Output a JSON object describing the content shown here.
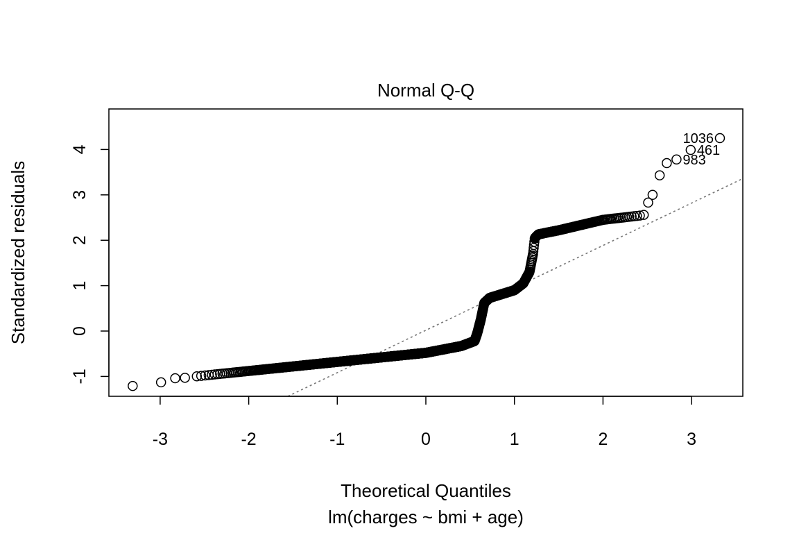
{
  "chart_data": {
    "type": "scatter",
    "title": "Normal Q-Q",
    "xlabel": "Theoretical Quantiles",
    "ylabel": "Standardized residuals",
    "subtitle": "lm(charges ~ bmi + age)",
    "xlim": [
      -3.6,
      3.6
    ],
    "ylim": [
      -1.45,
      4.9
    ],
    "xticks": [
      -3,
      -2,
      -1,
      0,
      1,
      2,
      3
    ],
    "yticks": [
      -1,
      0,
      1,
      2,
      3,
      4
    ],
    "grid": false,
    "marker": "open-circle",
    "reference_line": {
      "intercept": 0.017,
      "slope": 0.934,
      "style": "dotted",
      "color": "#777777"
    },
    "curve_knots": [
      [
        -2.6,
        -1.0
      ],
      [
        -2.0,
        -0.88
      ],
      [
        -1.0,
        -0.68
      ],
      [
        0.0,
        -0.48
      ],
      [
        0.4,
        -0.33
      ],
      [
        0.55,
        -0.22
      ],
      [
        0.58,
        -0.05
      ],
      [
        0.62,
        0.25
      ],
      [
        0.66,
        0.62
      ],
      [
        0.72,
        0.73
      ],
      [
        1.0,
        0.9
      ],
      [
        1.1,
        1.05
      ],
      [
        1.17,
        1.3
      ],
      [
        1.21,
        1.7
      ],
      [
        1.23,
        2.05
      ],
      [
        1.27,
        2.13
      ],
      [
        1.5,
        2.22
      ],
      [
        2.0,
        2.45
      ],
      [
        2.44,
        2.55
      ]
    ],
    "tail_points": [
      {
        "x": -3.31,
        "y": -1.21
      },
      {
        "x": -2.99,
        "y": -1.13
      },
      {
        "x": -2.83,
        "y": -1.04
      },
      {
        "x": -2.72,
        "y": -1.03
      },
      {
        "x": 2.46,
        "y": 2.56
      },
      {
        "x": 2.51,
        "y": 2.83
      },
      {
        "x": 2.56,
        "y": 3.0
      },
      {
        "x": 2.64,
        "y": 3.43
      },
      {
        "x": 2.72,
        "y": 3.7
      },
      {
        "x": 2.83,
        "y": 3.78,
        "label": "983"
      },
      {
        "x": 2.99,
        "y": 3.99,
        "label": "461"
      },
      {
        "x": 3.32,
        "y": 4.25,
        "label": "1036"
      }
    ]
  }
}
